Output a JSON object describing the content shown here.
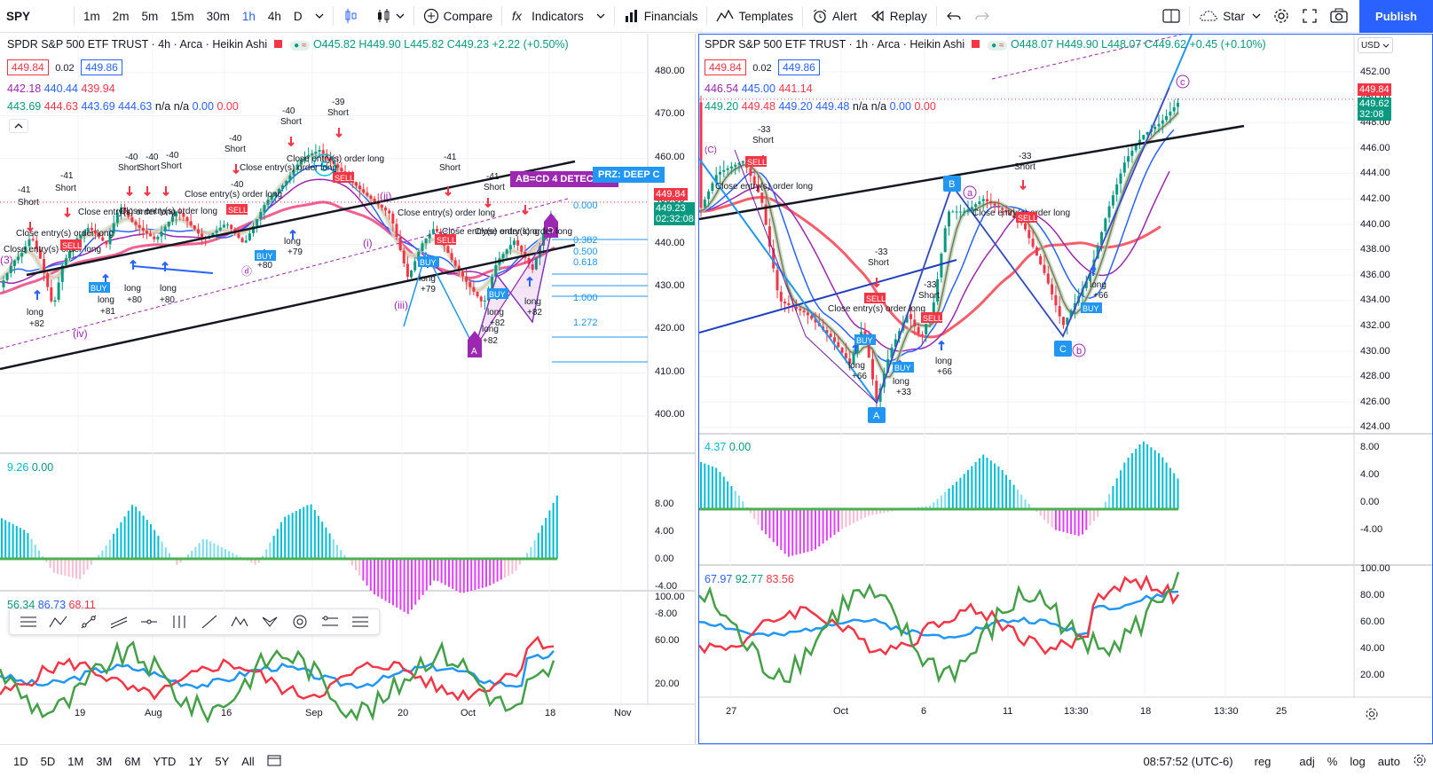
{
  "symbol": "SPY",
  "toolbar": {
    "intervals": [
      "1m",
      "2m",
      "5m",
      "15m",
      "30m",
      "1h",
      "4h",
      "D"
    ],
    "active_interval": "1h",
    "compare": "Compare",
    "indicators": "Indicators",
    "financials": "Financials",
    "templates": "Templates",
    "alert": "Alert",
    "replay": "Replay",
    "star": "Star",
    "publish": "Publish"
  },
  "left": {
    "title": "SPDR S&P 500 ETF TRUST · 4h · Arca · Heikin Ashi",
    "ohlc": "O445.82 H449.90 L445.82 C449.23 +2.22 (+0.50%)",
    "bid": "449.84",
    "spread": "0.02",
    "ask": "449.86",
    "line2": [
      "442.18",
      "440.44",
      "439.94"
    ],
    "line3": [
      "443.69",
      "444.63",
      "443.69",
      "444.63",
      "n/a",
      "n/a",
      "0.00",
      "0.00"
    ],
    "price_axis": [
      "480.00",
      "470.00",
      "460.00",
      "450.00",
      "440.00",
      "430.00",
      "420.00",
      "410.00",
      "400.00"
    ],
    "price_tag": "449.84",
    "price_tag2": "449.23",
    "price_tag3": "02:32:08",
    "fib": [
      "0.000",
      "0.382",
      "0.500",
      "0.618",
      "1.000",
      "1.272"
    ],
    "abcd_label": "AB=CD 4 DETECTED",
    "prz_label": "PRZ: DEEP C",
    "osc_value": [
      "9.26",
      "0.00"
    ],
    "osc_axis": [
      "8.00",
      "4.00",
      "0.00",
      "-4.00",
      "-8.00"
    ],
    "rsi_value": [
      "56.34",
      "86.73",
      "68.11"
    ],
    "rsi_axis": [
      "100.00",
      "60.00",
      "20.00"
    ],
    "time_axis": [
      "19",
      "Aug",
      "16",
      "Sep",
      "20",
      "Oct",
      "18",
      "Nov"
    ]
  },
  "right": {
    "title": "SPDR S&P 500 ETF TRUST · 1h · Arca · Heikin Ashi",
    "ohlc": "O448.07 H449.90 L448.07 C449.62 +0.45 (+0.10%)",
    "bid": "449.84",
    "spread": "0.02",
    "ask": "449.86",
    "line2": [
      "446.54",
      "445.00",
      "441.14"
    ],
    "line3": [
      "449.20",
      "449.48",
      "449.20",
      "449.48",
      "n/a",
      "n/a",
      "0.00",
      "0.00"
    ],
    "currency": "USD",
    "price_axis": [
      "452.00",
      "450.00",
      "448.00",
      "446.00",
      "444.00",
      "442.00",
      "440.00",
      "438.00",
      "436.00",
      "434.00",
      "432.00",
      "430.00",
      "428.00",
      "426.00",
      "424.00"
    ],
    "price_tag": "449.84",
    "price_tag2": "449.62",
    "price_tag3": "32:08",
    "osc_value": [
      "4.37",
      "0.00"
    ],
    "osc_axis": [
      "8.00",
      "4.00",
      "0.00",
      "-4.00"
    ],
    "rsi_value": [
      "67.97",
      "92.77",
      "83.56"
    ],
    "rsi_axis": [
      "100.00",
      "80.00",
      "60.00",
      "40.00",
      "20.00"
    ],
    "time_axis": [
      "27",
      "Oct",
      "6",
      "11",
      "13:30",
      "18",
      "13:30",
      "25"
    ]
  },
  "bottom": {
    "ranges": [
      "1D",
      "5D",
      "1M",
      "3M",
      "6M",
      "YTD",
      "1Y",
      "5Y",
      "All"
    ],
    "clock": "08:57:52 (UTC-6)",
    "reg": "reg",
    "adj": "adj",
    "percent": "%",
    "log": "log",
    "auto": "auto"
  },
  "colors": {
    "up": "#089981",
    "down": "#f23645",
    "accent": "#2962ff",
    "osc_up": "#00bcd4",
    "osc_down": "#e040fb"
  }
}
